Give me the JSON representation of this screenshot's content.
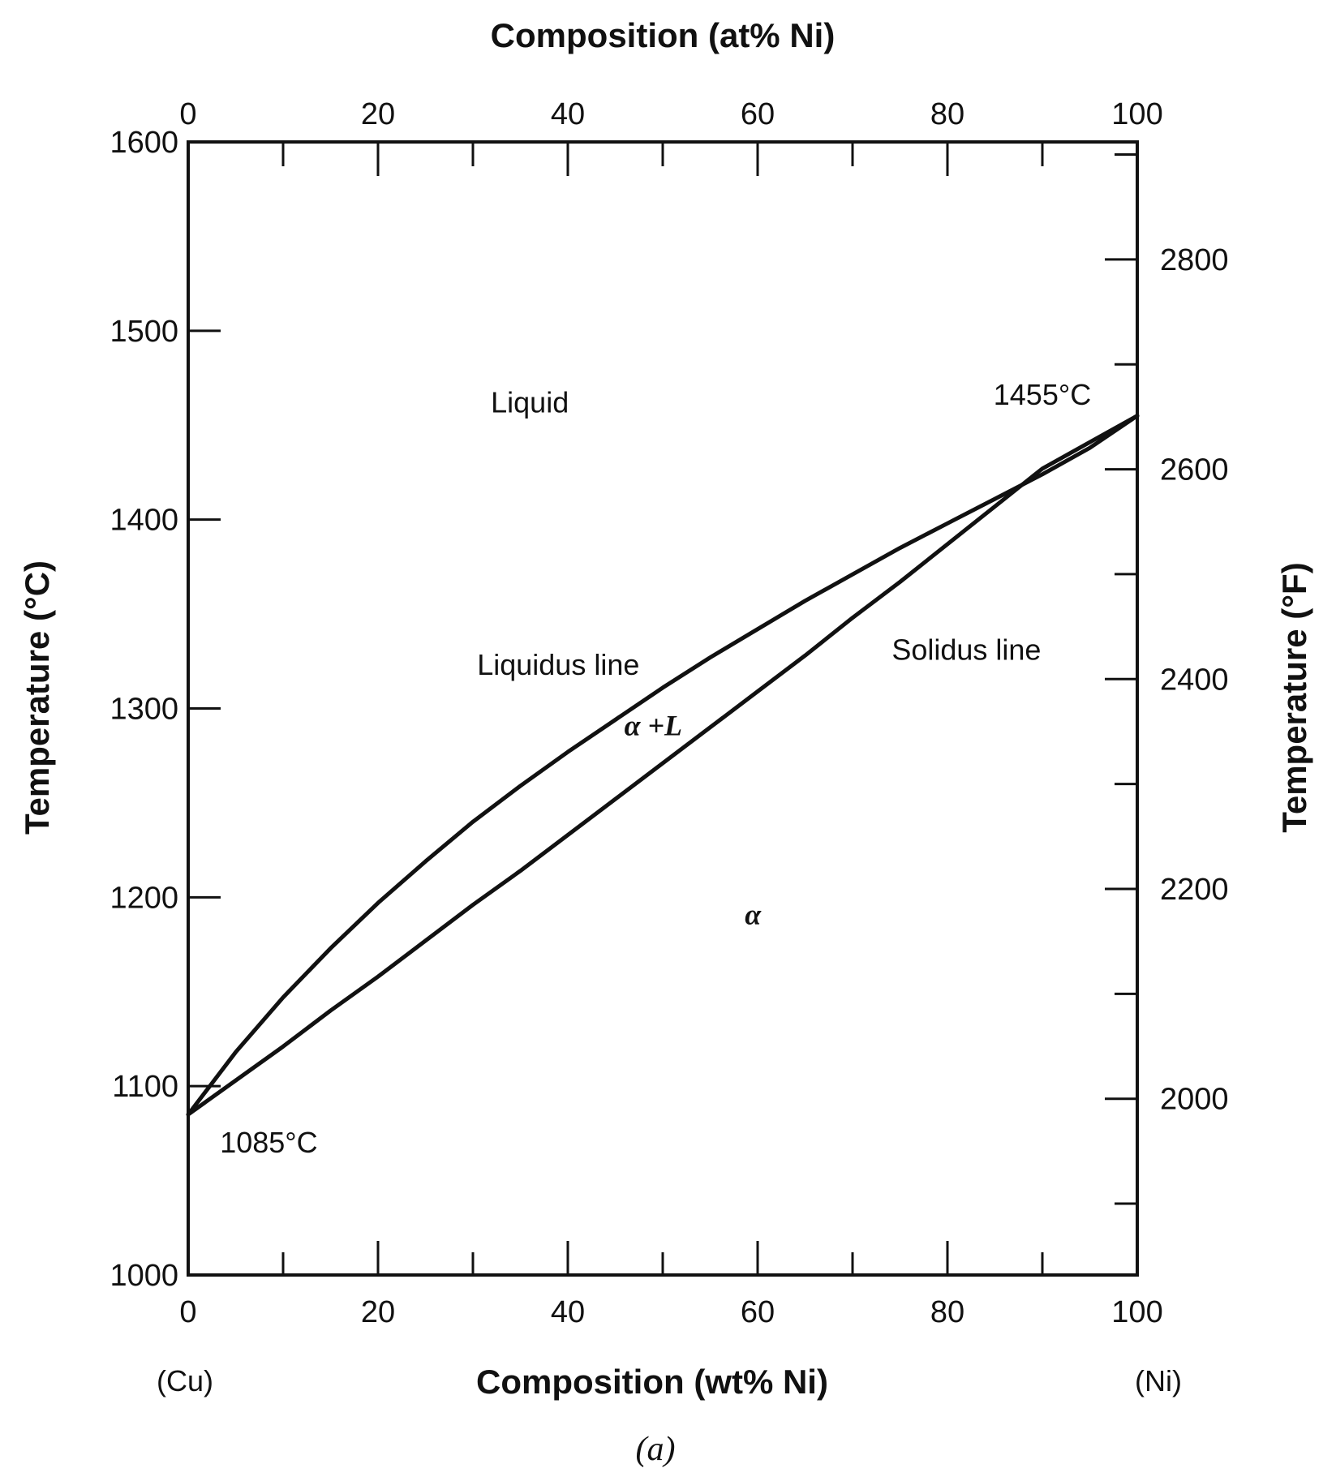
{
  "chart_data": {
    "type": "line",
    "top_axis": {
      "label": "Composition (at% Ni)",
      "ticks": [
        0,
        20,
        40,
        60,
        80,
        100
      ],
      "tick_labels": [
        "0",
        "20",
        "40",
        "60",
        "80",
        "100"
      ],
      "minor_ticks": [
        10,
        30,
        50,
        70,
        90
      ]
    },
    "bottom_axis": {
      "label": "Composition (wt% Ni)",
      "xlim": [
        0,
        100
      ],
      "ticks": [
        0,
        20,
        40,
        60,
        80,
        100
      ],
      "tick_labels": [
        "0",
        "20",
        "40",
        "60",
        "80",
        "100"
      ],
      "minor_ticks": [
        10,
        30,
        50,
        70,
        90
      ]
    },
    "left_axis": {
      "label": "Temperature (°C)",
      "ylim": [
        1000,
        1600
      ],
      "ticks": [
        1000,
        1100,
        1200,
        1300,
        1400,
        1500,
        1600
      ],
      "tick_labels": [
        "1000",
        "1100",
        "1200",
        "1300",
        "1400",
        "1500",
        "1600"
      ]
    },
    "right_axis": {
      "label": "Temperature (°F)",
      "major_ticks": [
        2000,
        2200,
        2400,
        2600,
        2800
      ],
      "tick_labels": [
        "2000",
        "2200",
        "2400",
        "2600",
        "2800"
      ],
      "minor_ticks": [
        1900,
        2100,
        2300,
        2500,
        2700,
        2900
      ]
    },
    "series": [
      {
        "name": "Liquidus line",
        "x": [
          0,
          5,
          10,
          15,
          20,
          25,
          30,
          35,
          40,
          45,
          50,
          55,
          60,
          65,
          70,
          75,
          80,
          85,
          90,
          95,
          100
        ],
        "y": [
          1085,
          1118,
          1147,
          1173,
          1197,
          1219,
          1240,
          1259,
          1277,
          1294,
          1311,
          1327,
          1342,
          1357,
          1371,
          1385,
          1398,
          1411,
          1424,
          1438,
          1455
        ]
      },
      {
        "name": "Solidus line",
        "x": [
          0,
          5,
          10,
          15,
          20,
          25,
          30,
          35,
          40,
          45,
          50,
          55,
          60,
          65,
          70,
          75,
          80,
          85,
          90,
          95,
          100
        ],
        "y": [
          1085,
          1103,
          1121,
          1140,
          1158,
          1177,
          1196,
          1214,
          1233,
          1252,
          1271,
          1290,
          1309,
          1328,
          1348,
          1367,
          1387,
          1407,
          1427,
          1441,
          1455
        ]
      }
    ],
    "annotations": [
      {
        "text": "Liquid",
        "x": 36,
        "y": 1462
      },
      {
        "text": "Liquidus line",
        "x": 39,
        "y": 1323
      },
      {
        "text": "Solidus line",
        "x": 82,
        "y": 1331
      },
      {
        "text": "α +L",
        "x": 49,
        "y": 1291
      },
      {
        "text": "α",
        "x": 59.5,
        "y": 1191
      },
      {
        "text": "1455°C",
        "x": 90,
        "y": 1466
      },
      {
        "text": "1085°C",
        "x": 8.5,
        "y": 1070
      }
    ],
    "grid": false
  },
  "labels": {
    "cu": "(Cu)",
    "ni": "(Ni)",
    "caption": "(a)"
  }
}
